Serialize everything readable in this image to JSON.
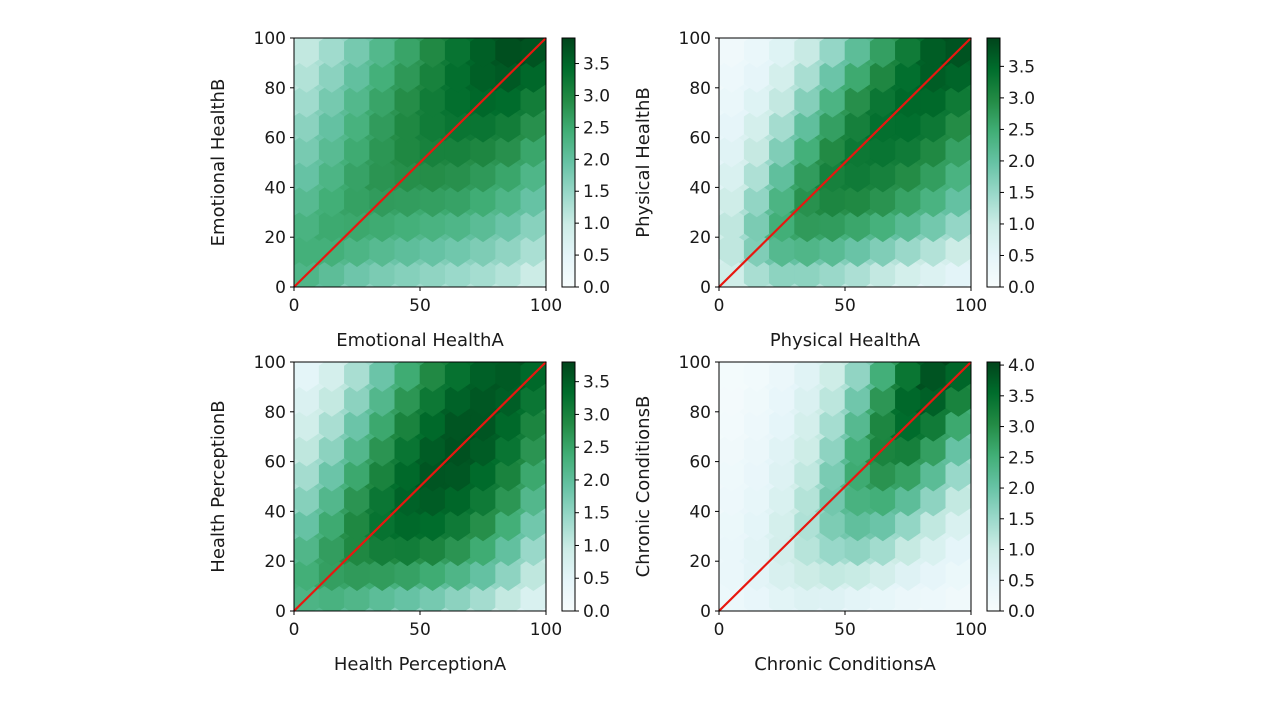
{
  "colors": {
    "diagonal": "#e8170f",
    "axis": "#000000",
    "bg": "#ffffff"
  },
  "chart_data": [
    {
      "type": "heatmap",
      "title": "",
      "xlabel": "Emotional HealthA",
      "ylabel": "Emotional HealthB",
      "xlim": [
        0,
        100
      ],
      "ylim": [
        0,
        100
      ],
      "xticks": [
        0,
        50,
        100
      ],
      "yticks": [
        0,
        20,
        40,
        60,
        80,
        100
      ],
      "colorbar": {
        "min": 0,
        "max": 3.9,
        "ticks": [
          0.0,
          0.5,
          1.0,
          1.5,
          2.0,
          2.5,
          3.0,
          3.5
        ]
      },
      "gridsize": 10,
      "grid": [
        [
          2.2,
          2.0,
          1.7,
          1.6,
          1.5,
          1.4,
          1.3,
          1.2,
          1.1,
          0.9,
          0.7
        ],
        [
          2.4,
          2.4,
          2.2,
          2.0,
          1.9,
          1.8,
          1.7,
          1.6,
          1.5,
          1.3,
          1.0
        ],
        [
          2.3,
          2.5,
          2.5,
          2.4,
          2.3,
          2.2,
          2.1,
          2.0,
          1.8,
          1.6,
          1.3
        ],
        [
          2.1,
          2.4,
          2.6,
          2.6,
          2.6,
          2.5,
          2.5,
          2.4,
          2.2,
          2.0,
          1.6
        ],
        [
          1.9,
          2.2,
          2.5,
          2.8,
          2.8,
          2.8,
          2.8,
          2.7,
          2.5,
          2.3,
          1.9
        ],
        [
          1.7,
          2.0,
          2.4,
          2.7,
          2.9,
          3.0,
          3.0,
          2.9,
          2.8,
          2.6,
          2.2
        ],
        [
          1.5,
          1.9,
          2.2,
          2.6,
          2.9,
          3.1,
          3.2,
          3.2,
          3.1,
          2.9,
          2.5
        ],
        [
          1.3,
          1.7,
          2.1,
          2.5,
          2.8,
          3.1,
          3.3,
          3.4,
          3.4,
          3.2,
          2.8
        ],
        [
          1.1,
          1.5,
          1.9,
          2.3,
          2.7,
          3.0,
          3.3,
          3.5,
          3.6,
          3.5,
          3.1
        ],
        [
          1.0,
          1.3,
          1.7,
          2.1,
          2.5,
          2.8,
          3.2,
          3.5,
          3.7,
          3.8,
          3.5
        ],
        [
          0.9,
          1.1,
          1.5,
          1.9,
          2.3,
          2.7,
          3.1,
          3.4,
          3.7,
          3.9,
          3.7
        ]
      ]
    },
    {
      "type": "heatmap",
      "title": "",
      "xlabel": "Physical HealthA",
      "ylabel": "Physical HealthB",
      "xlim": [
        0,
        100
      ],
      "ylim": [
        0,
        100
      ],
      "xticks": [
        0,
        50,
        100
      ],
      "yticks": [
        0,
        20,
        40,
        60,
        80,
        100
      ],
      "colorbar": {
        "min": 0,
        "max": 3.95,
        "ticks": [
          0.0,
          0.5,
          1.0,
          1.5,
          2.0,
          2.5,
          3.0,
          3.5
        ]
      },
      "gridsize": 10,
      "grid": [
        [
          0.6,
          0.9,
          1.2,
          1.3,
          1.2,
          1.1,
          0.9,
          0.7,
          0.5,
          0.4,
          0.3
        ],
        [
          0.8,
          1.3,
          1.9,
          2.0,
          1.9,
          1.7,
          1.5,
          1.2,
          1.0,
          0.8,
          0.6
        ],
        [
          0.9,
          1.4,
          2.3,
          2.6,
          2.6,
          2.4,
          2.2,
          2.0,
          1.7,
          1.4,
          1.1
        ],
        [
          0.8,
          1.3,
          2.1,
          2.8,
          3.0,
          2.9,
          2.8,
          2.6,
          2.3,
          2.0,
          1.6
        ],
        [
          0.6,
          1.0,
          1.8,
          2.6,
          3.1,
          3.2,
          3.1,
          2.9,
          2.7,
          2.4,
          2.0
        ],
        [
          0.5,
          0.8,
          1.5,
          2.3,
          2.9,
          3.3,
          3.3,
          3.2,
          3.0,
          2.7,
          2.3
        ],
        [
          0.4,
          0.7,
          1.2,
          1.9,
          2.6,
          3.1,
          3.4,
          3.4,
          3.3,
          3.0,
          2.6
        ],
        [
          0.3,
          0.5,
          0.9,
          1.5,
          2.2,
          2.8,
          3.3,
          3.5,
          3.5,
          3.3,
          2.9
        ],
        [
          0.2,
          0.4,
          0.7,
          1.2,
          1.8,
          2.5,
          3.0,
          3.4,
          3.6,
          3.6,
          3.2
        ],
        [
          0.2,
          0.3,
          0.5,
          0.9,
          1.4,
          2.0,
          2.6,
          3.1,
          3.6,
          3.8,
          3.6
        ],
        [
          0.1,
          0.2,
          0.4,
          0.7,
          1.1,
          1.6,
          2.2,
          2.8,
          3.4,
          3.8,
          3.9
        ]
      ]
    },
    {
      "type": "heatmap",
      "title": "",
      "xlabel": "Health PerceptionA",
      "ylabel": "Health PerceptionB",
      "xlim": [
        0,
        100
      ],
      "ylim": [
        0,
        100
      ],
      "xticks": [
        0,
        50,
        100
      ],
      "yticks": [
        0,
        20,
        40,
        60,
        80,
        100
      ],
      "colorbar": {
        "min": 0,
        "max": 3.8,
        "ticks": [
          0.0,
          0.5,
          1.0,
          1.5,
          2.0,
          2.5,
          3.0,
          3.5
        ]
      },
      "gridsize": 10,
      "grid": [
        [
          2.0,
          2.1,
          2.0,
          1.8,
          1.6,
          1.5,
          1.3,
          1.1,
          0.9,
          0.6,
          0.4
        ],
        [
          2.3,
          2.5,
          2.5,
          2.4,
          2.3,
          2.2,
          2.0,
          1.8,
          1.5,
          1.1,
          0.7
        ],
        [
          2.1,
          2.5,
          2.8,
          2.9,
          2.9,
          2.8,
          2.6,
          2.4,
          2.0,
          1.5,
          1.0
        ],
        [
          1.8,
          2.3,
          2.8,
          3.1,
          3.3,
          3.3,
          3.1,
          2.8,
          2.4,
          1.9,
          1.3
        ],
        [
          1.5,
          2.0,
          2.6,
          3.1,
          3.4,
          3.5,
          3.4,
          3.2,
          2.8,
          2.3,
          1.7
        ],
        [
          1.2,
          1.7,
          2.3,
          2.9,
          3.3,
          3.6,
          3.6,
          3.4,
          3.1,
          2.6,
          2.0
        ],
        [
          1.0,
          1.4,
          2.0,
          2.6,
          3.1,
          3.5,
          3.7,
          3.6,
          3.3,
          2.9,
          2.3
        ],
        [
          0.8,
          1.1,
          1.7,
          2.3,
          2.9,
          3.3,
          3.6,
          3.7,
          3.5,
          3.1,
          2.6
        ],
        [
          0.6,
          0.9,
          1.4,
          2.0,
          2.6,
          3.1,
          3.5,
          3.6,
          3.6,
          3.3,
          2.8
        ],
        [
          0.5,
          0.7,
          1.1,
          1.7,
          2.3,
          2.8,
          3.2,
          3.5,
          3.6,
          3.5,
          3.1
        ],
        [
          0.3,
          0.5,
          0.9,
          1.4,
          2.0,
          2.5,
          3.0,
          3.3,
          3.5,
          3.6,
          3.3
        ]
      ]
    },
    {
      "type": "heatmap",
      "title": "",
      "xlabel": "Chronic ConditionsA",
      "ylabel": "Chronic ConditionsB",
      "xlim": [
        0,
        100
      ],
      "ylim": [
        0,
        100
      ],
      "xticks": [
        0,
        50,
        100
      ],
      "yticks": [
        0,
        20,
        40,
        60,
        80,
        100
      ],
      "colorbar": {
        "min": 0,
        "max": 4.05,
        "ticks": [
          0.0,
          0.5,
          1.0,
          1.5,
          2.0,
          2.5,
          3.0,
          3.5,
          4.0
        ]
      },
      "gridsize": 10,
      "grid": [
        [
          0.2,
          0.3,
          0.4,
          0.5,
          0.5,
          0.4,
          0.3,
          0.3,
          0.2,
          0.2,
          0.1
        ],
        [
          0.3,
          0.4,
          0.6,
          0.8,
          0.9,
          0.8,
          0.7,
          0.5,
          0.4,
          0.3,
          0.2
        ],
        [
          0.3,
          0.5,
          0.7,
          1.0,
          1.3,
          1.4,
          1.3,
          1.0,
          0.7,
          0.5,
          0.3
        ],
        [
          0.3,
          0.4,
          0.7,
          1.1,
          1.5,
          1.9,
          1.9,
          1.5,
          1.1,
          0.7,
          0.5
        ],
        [
          0.2,
          0.4,
          0.6,
          1.0,
          1.6,
          2.2,
          2.4,
          2.1,
          1.6,
          1.1,
          0.7
        ],
        [
          0.2,
          0.3,
          0.5,
          0.9,
          1.5,
          2.3,
          2.8,
          2.7,
          2.2,
          1.6,
          1.0
        ],
        [
          0.2,
          0.3,
          0.5,
          0.8,
          1.3,
          2.2,
          3.0,
          3.2,
          2.8,
          2.1,
          1.4
        ],
        [
          0.1,
          0.2,
          0.4,
          0.7,
          1.1,
          1.9,
          2.9,
          3.5,
          3.4,
          2.7,
          1.9
        ],
        [
          0.1,
          0.2,
          0.3,
          0.6,
          1.0,
          1.6,
          2.6,
          3.5,
          3.8,
          3.3,
          2.5
        ],
        [
          0.1,
          0.1,
          0.3,
          0.5,
          0.8,
          1.3,
          2.2,
          3.2,
          3.9,
          3.8,
          3.1
        ],
        [
          0.1,
          0.1,
          0.2,
          0.4,
          0.7,
          1.1,
          1.8,
          2.8,
          3.7,
          4.0,
          3.6
        ]
      ]
    }
  ]
}
